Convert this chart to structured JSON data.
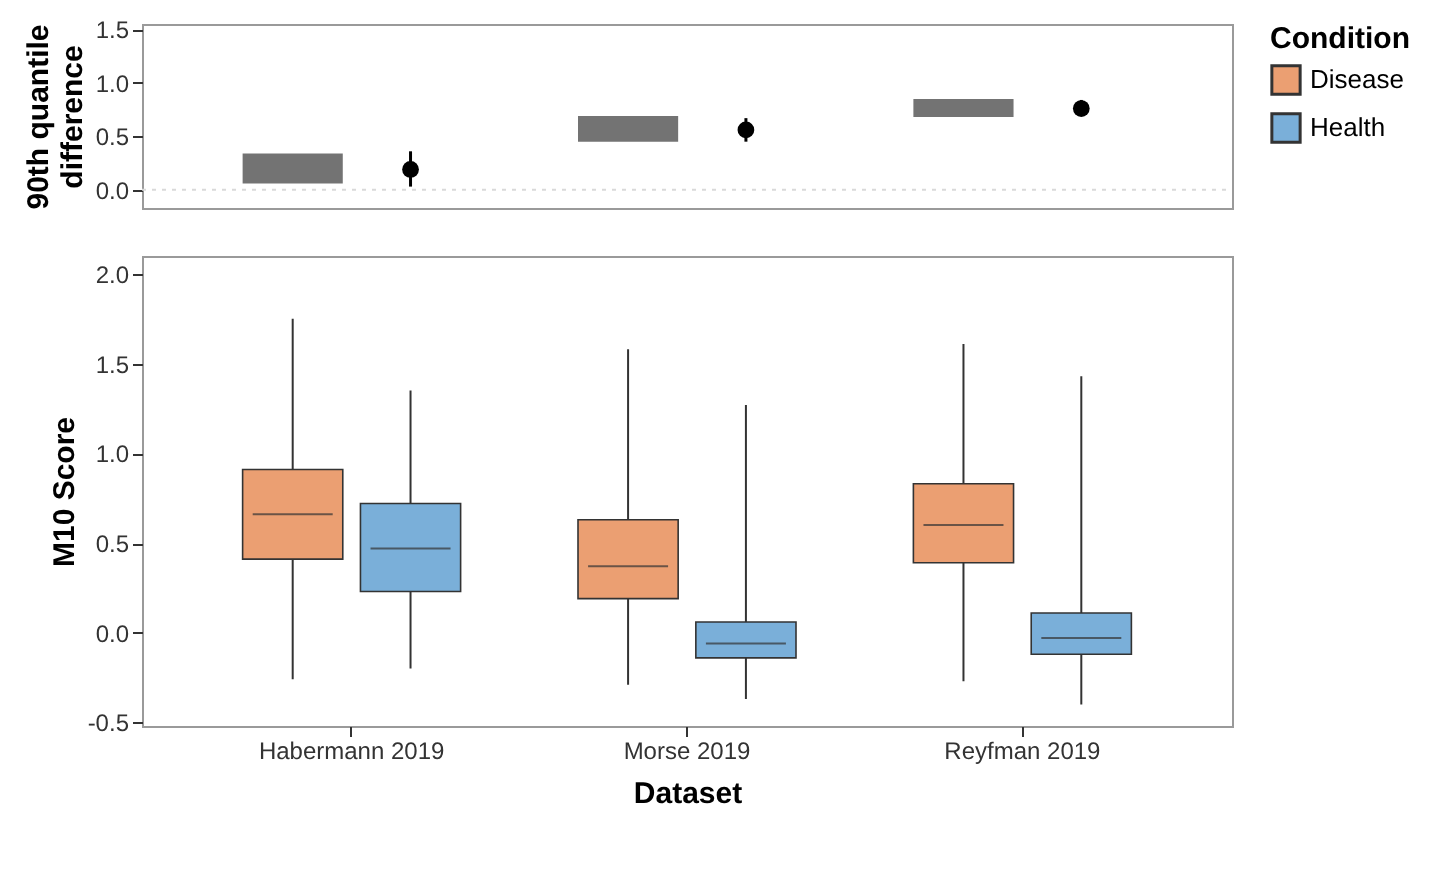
{
  "chart_data": [
    {
      "type": "scatter",
      "categories": [
        null,
        null,
        null
      ],
      "ylabel": "90th quantile\ndifference",
      "ylim": [
        -0.17,
        1.55
      ],
      "yticks": [
        {
          "value": 0,
          "label": "0.0"
        },
        {
          "value": 0.5,
          "label": "0.5"
        },
        {
          "value": 1,
          "label": "1.0"
        },
        {
          "value": 1.5,
          "label": "1.5"
        }
      ],
      "tick_labels": "y",
      "grid": false,
      "legend": false,
      "ref_lines": [
        {
          "axis": "y",
          "value": 0,
          "color": "#d9d9d9",
          "line_style": "dotted"
        }
      ],
      "series": [
        {
          "type": "bar",
          "color": "#000000",
          "base": [
            0.06,
            0.45,
            0.68
          ],
          "values": [
            0.28,
            0.24,
            0.17
          ]
        },
        {
          "type": "scatter",
          "color": "#000000",
          "marker": "circle",
          "values": [
            0.19,
            0.56,
            0.76
          ],
          "errors": [
            [
              0.03,
              0.36
            ],
            [
              0.45,
              0.67
            ],
            [
              0.69,
              0.84
            ]
          ]
        }
      ]
    },
    {
      "type": "box",
      "categories": [
        "Habermann 2019",
        "Morse 2019",
        "Reyfman 2019"
      ],
      "xlabel": "Dataset",
      "ylabel": "M10 Score",
      "legend_title": "Condition",
      "legend": "right",
      "grid": false,
      "ylim": [
        -0.52,
        2.1
      ],
      "yticks": [
        {
          "value": -0.5,
          "label": "-0.5"
        },
        {
          "value": 0,
          "label": "0.0"
        },
        {
          "value": 0.5,
          "label": "0.5"
        },
        {
          "value": 1,
          "label": "1.0"
        },
        {
          "value": 1.5,
          "label": "1.5"
        },
        {
          "value": 2,
          "label": "2.0"
        }
      ],
      "series": [
        {
          "name": "Disease",
          "color": "#eb9f72",
          "boxes": [
            {
              "low": -0.26,
              "q1": 0.41,
              "median": 0.66,
              "q3": 0.91,
              "high": 1.75
            },
            {
              "low": -0.29,
              "q1": 0.19,
              "median": 0.37,
              "q3": 0.63,
              "high": 1.58
            },
            {
              "low": -0.27,
              "q1": 0.39,
              "median": 0.6,
              "q3": 0.83,
              "high": 1.61
            }
          ]
        },
        {
          "name": "Health",
          "color": "#7aafd9",
          "boxes": [
            {
              "low": -0.2,
              "q1": 0.23,
              "median": 0.47,
              "q3": 0.72,
              "high": 1.35
            },
            {
              "low": -0.37,
              "q1": -0.14,
              "median": -0.06,
              "q3": 0.06,
              "high": 1.27
            },
            {
              "low": -0.4,
              "q1": -0.12,
              "median": -0.03,
              "q3": 0.11,
              "high": 1.43
            }
          ]
        }
      ]
    }
  ]
}
